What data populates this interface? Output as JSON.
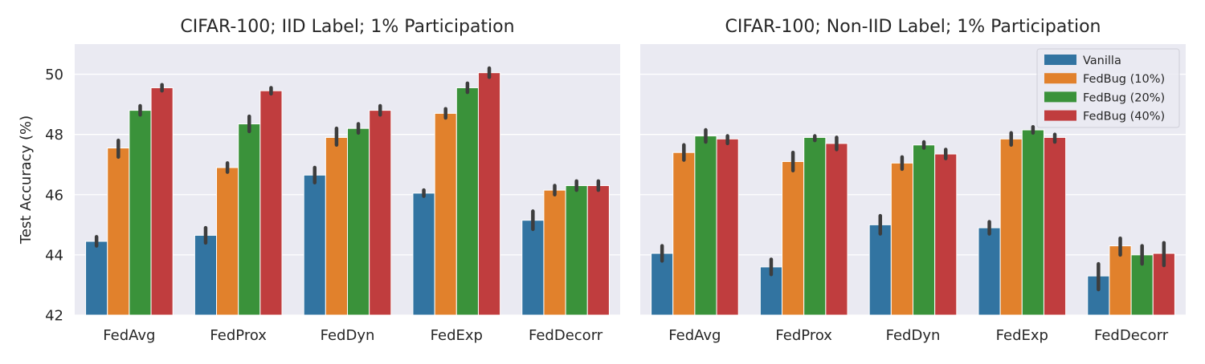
{
  "chart_data": [
    {
      "type": "bar",
      "title": "CIFAR-100; IID Label; 1% Participation",
      "ylabel": "Test Accuracy (%)",
      "xlabel": "",
      "ylim": [
        42,
        51
      ],
      "yticks": [
        42,
        44,
        46,
        48,
        50
      ],
      "grid": true,
      "categories": [
        "FedAvg",
        "FedProx",
        "FedDyn",
        "FedExp",
        "FedDecorr"
      ],
      "series": [
        {
          "name": "Vanilla",
          "values": [
            44.45,
            44.65,
            46.65,
            46.05,
            45.15
          ],
          "err_low": [
            44.3,
            44.4,
            46.4,
            45.95,
            44.85
          ],
          "err_high": [
            44.6,
            44.9,
            46.9,
            46.15,
            45.45
          ]
        },
        {
          "name": "FedBug (10%)",
          "values": [
            47.55,
            46.9,
            47.9,
            48.7,
            46.15
          ],
          "err_low": [
            47.25,
            46.75,
            47.65,
            48.55,
            46.0
          ],
          "err_high": [
            47.8,
            47.05,
            48.2,
            48.85,
            46.3
          ]
        },
        {
          "name": "FedBug (20%)",
          "values": [
            48.8,
            48.35,
            48.2,
            49.55,
            46.3
          ],
          "err_low": [
            48.65,
            48.1,
            48.05,
            49.4,
            46.15
          ],
          "err_high": [
            48.95,
            48.6,
            48.35,
            49.7,
            46.45
          ]
        },
        {
          "name": "FedBug (40%)",
          "values": [
            49.55,
            49.45,
            48.8,
            50.05,
            46.3
          ],
          "err_low": [
            49.45,
            49.35,
            48.65,
            49.9,
            46.15
          ],
          "err_high": [
            49.65,
            49.55,
            48.95,
            50.2,
            46.45
          ]
        }
      ],
      "colors": [
        "#3274a1",
        "#e1812c",
        "#3a923a",
        "#c03d3e"
      ],
      "legend": false
    },
    {
      "type": "bar",
      "title": "CIFAR-100; Non-IID Label; 1% Participation",
      "ylabel": "",
      "xlabel": "",
      "ylim": [
        42,
        51
      ],
      "yticks": [
        42,
        44,
        46,
        48,
        50
      ],
      "grid": true,
      "categories": [
        "FedAvg",
        "FedProx",
        "FedDyn",
        "FedExp",
        "FedDecorr"
      ],
      "series": [
        {
          "name": "Vanilla",
          "values": [
            44.05,
            43.6,
            45.0,
            44.9,
            43.3
          ],
          "err_low": [
            43.8,
            43.35,
            44.7,
            44.7,
            42.85
          ],
          "err_high": [
            44.3,
            43.85,
            45.3,
            45.1,
            43.7
          ]
        },
        {
          "name": "FedBug (10%)",
          "values": [
            47.4,
            47.1,
            47.05,
            47.85,
            44.3
          ],
          "err_low": [
            47.15,
            46.8,
            46.85,
            47.65,
            44.0
          ],
          "err_high": [
            47.65,
            47.4,
            47.25,
            48.05,
            44.55
          ]
        },
        {
          "name": "FedBug (20%)",
          "values": [
            47.95,
            47.9,
            47.65,
            48.15,
            44.0
          ],
          "err_low": [
            47.75,
            47.8,
            47.55,
            48.05,
            43.7
          ],
          "err_high": [
            48.15,
            47.95,
            47.75,
            48.25,
            44.3
          ]
        },
        {
          "name": "FedBug (40%)",
          "values": [
            47.85,
            47.7,
            47.35,
            47.9,
            44.05
          ],
          "err_low": [
            47.7,
            47.5,
            47.2,
            47.75,
            43.65
          ],
          "err_high": [
            47.95,
            47.9,
            47.5,
            48.0,
            44.4
          ]
        }
      ],
      "colors": [
        "#3274a1",
        "#e1812c",
        "#3a923a",
        "#c03d3e"
      ],
      "legend": true,
      "legend_position": "top-right"
    }
  ]
}
